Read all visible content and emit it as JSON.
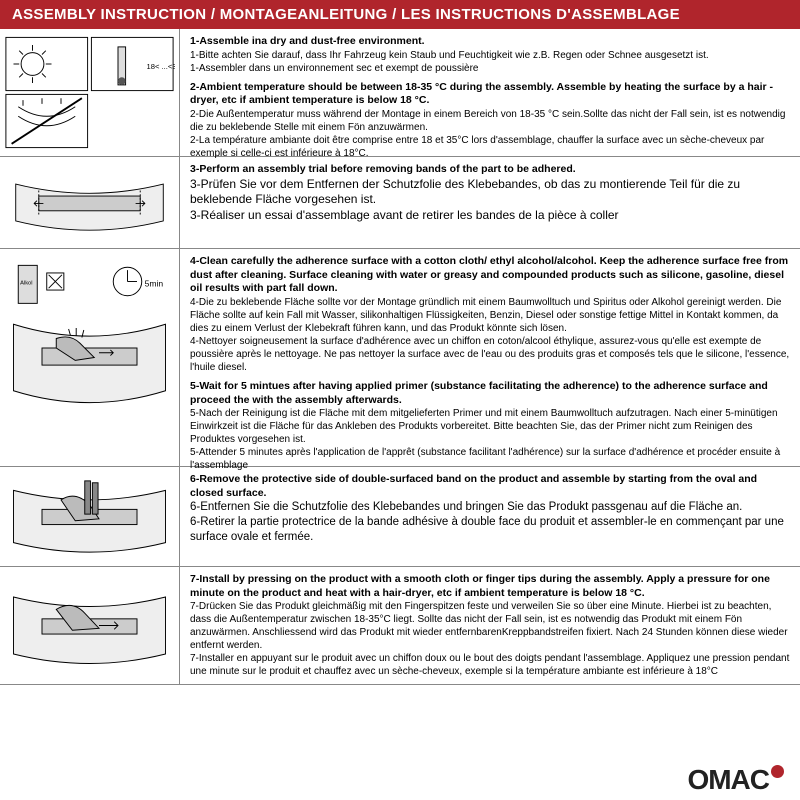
{
  "header": "ASSEMBLY INSTRUCTION / MONTAGEANLEITUNG / LES INSTRUCTIONS D'ASSEMBLAGE",
  "logo_text": "OMAC",
  "colors": {
    "header_bg": "#b0252c",
    "header_text": "#ffffff",
    "border": "#888888",
    "body_text": "#000000"
  },
  "steps": [
    {
      "lines": [
        {
          "bold": true,
          "text": "1-Assemble ina dry and dust-free environment."
        },
        {
          "bold": false,
          "text": "1-Bitte achten Sie darauf, dass Ihr Fahrzeug kein Staub und Feuchtigkeit wie z.B. Regen oder Schnee ausgesetzt ist."
        },
        {
          "bold": false,
          "text": "1-Assembler dans un environnement sec et exempt de poussière"
        },
        {
          "bold": false,
          "text": " "
        },
        {
          "bold": true,
          "text": "2-Ambient temperature should be between 18-35 °C  during the assembly. Assemble by heating the surface by a hair -dryer, etc if ambient temperature is below 18 °C."
        },
        {
          "bold": false,
          "text": "2-Die Außentemperatur muss während der Montage in einem Bereich von 18-35 °C  sein.Sollte das nicht der Fall sein, ist es notwendig die zu beklebende Stelle mit einem Fön anzuwärmen."
        },
        {
          "bold": false,
          "text": "2-La température ambiante doit être comprise entre 18 et 35°C lors d'assemblage, chauffer la surface avec un sèche-cheveux par exemple si celle-ci est inférieure à 18°C."
        }
      ]
    },
    {
      "lines": [
        {
          "bold": true,
          "text": "3-Perform an assembly trial before removing bands of the part to be adhered."
        },
        {
          "bold": false,
          "text": "3-Prüfen Sie vor dem Entfernen der Schutzfolie des Klebebandes, ob das zu montierende Teil für die zu beklebende Fläche vorgesehen ist."
        },
        {
          "bold": false,
          "text": "3-Réaliser un essai d'assemblage avant de retirer les bandes de la pièce à coller"
        }
      ],
      "large_font": true
    },
    {
      "lines": [
        {
          "bold": true,
          "text": "4-Clean carefully the adherence surface with a cotton cloth/ ethyl alcohol/alcohol. Keep the adherence surface free from dust after cleaning. Surface cleaning with water or greasy and compounded products such as silicone, gasoline, diesel oil results with part fall down."
        },
        {
          "bold": false,
          "text": "4-Die zu beklebende Fläche sollte vor der Montage gründlich mit einem Baumwolltuch und Spiritus oder Alkohol gereinigt werden. Die Fläche sollte auf kein Fall mit Wasser, silikonhaltigen Flüssigkeiten, Benzin, Diesel oder sonstige fettige Mittel in Kontakt kommen, da dies zu einem Verlust der Klebekraft führen kann, und das Produkt könnte sich lösen."
        },
        {
          "bold": false,
          "text": "4-Nettoyer soigneusement la surface d'adhérence avec un chiffon en coton/alcool éthylique, assurez-vous qu'elle est exempte de poussière après le nettoyage. Ne pas nettoyer la surface avec de l'eau ou des produits gras et composés tels que le silicone, l'essence, l'huile diesel."
        },
        {
          "bold": false,
          "text": " "
        },
        {
          "bold": true,
          "text": "5-Wait for 5 mintues after having applied primer (substance facilitating the adherence) to the adherence surface and proceed the with the assembly afterwards."
        },
        {
          "bold": false,
          "text": "5-Nach der Reinigung ist die Fläche mit dem mitgelieferten Primer und mit einem Baumwolltuch aufzutragen. Nach einer 5-minütigen Einwirkzeit ist die Fläche für das Ankleben des Produkts vorbereitet. Bitte beachten Sie, das der Primer nicht zum Reinigen des Produktes vorgesehen ist."
        },
        {
          "bold": false,
          "text": "5-Attender 5 minutes après l'application de l'apprêt (substance facilitant l'adhérence) sur la surface d'adhérence et procéder ensuite à l'assemblage"
        }
      ]
    },
    {
      "lines": [
        {
          "bold": true,
          "text": "6-Remove the protective side of double-surfaced band on the product and assemble by starting from the oval and closed surface."
        },
        {
          "bold": false,
          "text": "6-Entfernen Sie die Schutzfolie des Klebebandes und bringen Sie das Produkt passgenau auf die Fläche an."
        },
        {
          "bold": false,
          "text": "6-Retirer la partie protectrice de la bande adhésive à double face du produit et assembler-le en commençant par une surface ovale et fermée."
        }
      ],
      "large_font": true
    },
    {
      "lines": [
        {
          "bold": true,
          "text": "7-Install by pressing on the product with a smooth cloth or finger tips during the assembly. Apply a pressure for one minute on the product and heat with a hair-dryer, etc if ambient temperature is below 18 °C."
        },
        {
          "bold": false,
          "text": "7-Drücken Sie das Produkt gleichmäßig mit den Fingerspitzen feste und verweilen Sie so über eine Minute. Hierbei ist zu beachten, dass die Außentemperatur zwischen 18-35°C liegt. Sollte das nicht der Fall sein, ist es notwendig das Produkt mit einem Fön anzuwärmen. Anschliessend wird das Produkt mit wieder entfernbarenKreppbandstreifen fixiert. Nach 24 Stunden können diese wieder entfernt werden."
        },
        {
          "bold": false,
          "text": "7-Installer en appuyant sur le produit avec un chiffon doux ou le bout des doigts pendant l'assemblage. Appliquez une pression pendant une minute sur le produit et chauffez avec un sèche-cheveux, exemple si la température ambiante est inférieure à 18°C"
        }
      ]
    }
  ]
}
